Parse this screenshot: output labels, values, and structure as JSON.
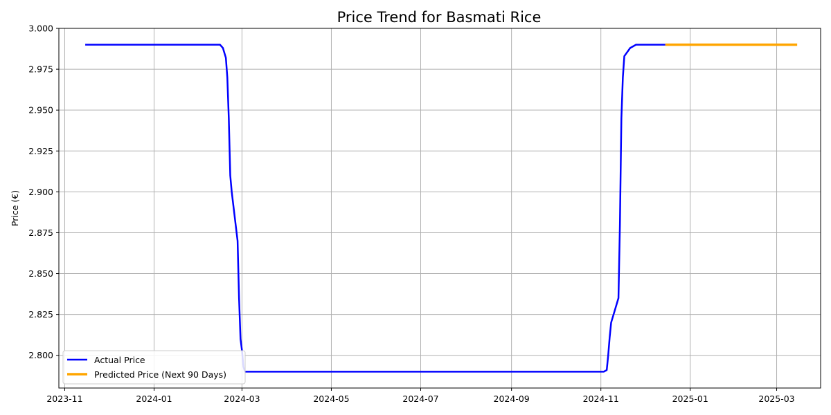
{
  "chart_data": {
    "type": "line",
    "title": "Price Trend for Basmati Rice",
    "xlabel": "",
    "ylabel": "Price (€)",
    "xlim": [
      "2023-10-28",
      "2025-03-31"
    ],
    "ylim": [
      2.78,
      3.0
    ],
    "x_ticks": [
      "2023-11",
      "2024-01",
      "2024-03",
      "2024-05",
      "2024-07",
      "2024-09",
      "2024-11",
      "2025-01",
      "2025-03"
    ],
    "y_ticks": [
      "2.800",
      "2.825",
      "2.850",
      "2.875",
      "2.900",
      "2.925",
      "2.950",
      "2.975",
      "3.000"
    ],
    "grid": true,
    "legend_position": "lower-left",
    "series": [
      {
        "name": "Actual Price",
        "color": "#0000ff",
        "x": [
          "2023-11-15",
          "2024-02-15",
          "2024-02-17",
          "2024-02-19",
          "2024-02-20",
          "2024-02-21",
          "2024-02-22",
          "2024-02-23",
          "2024-02-27",
          "2024-02-28",
          "2024-02-29",
          "2024-03-01",
          "2024-03-02",
          "2024-03-03",
          "2024-03-05",
          "2024-11-03",
          "2024-11-05",
          "2024-11-06",
          "2024-11-07",
          "2024-11-08",
          "2024-11-13",
          "2024-11-14",
          "2024-11-15",
          "2024-11-16",
          "2024-11-17",
          "2024-11-21",
          "2024-11-25",
          "2024-12-15"
        ],
        "y": [
          2.99,
          2.99,
          2.988,
          2.982,
          2.97,
          2.945,
          2.91,
          2.9,
          2.87,
          2.835,
          2.81,
          2.803,
          2.793,
          2.79,
          2.79,
          2.79,
          2.791,
          2.8,
          2.811,
          2.82,
          2.835,
          2.88,
          2.945,
          2.97,
          2.983,
          2.988,
          2.99,
          2.99
        ]
      },
      {
        "name": "Predicted Price (Next 90 Days)",
        "color": "#ffa500",
        "x": [
          "2024-12-15",
          "2025-03-15"
        ],
        "y": [
          2.99,
          2.99
        ]
      }
    ]
  }
}
